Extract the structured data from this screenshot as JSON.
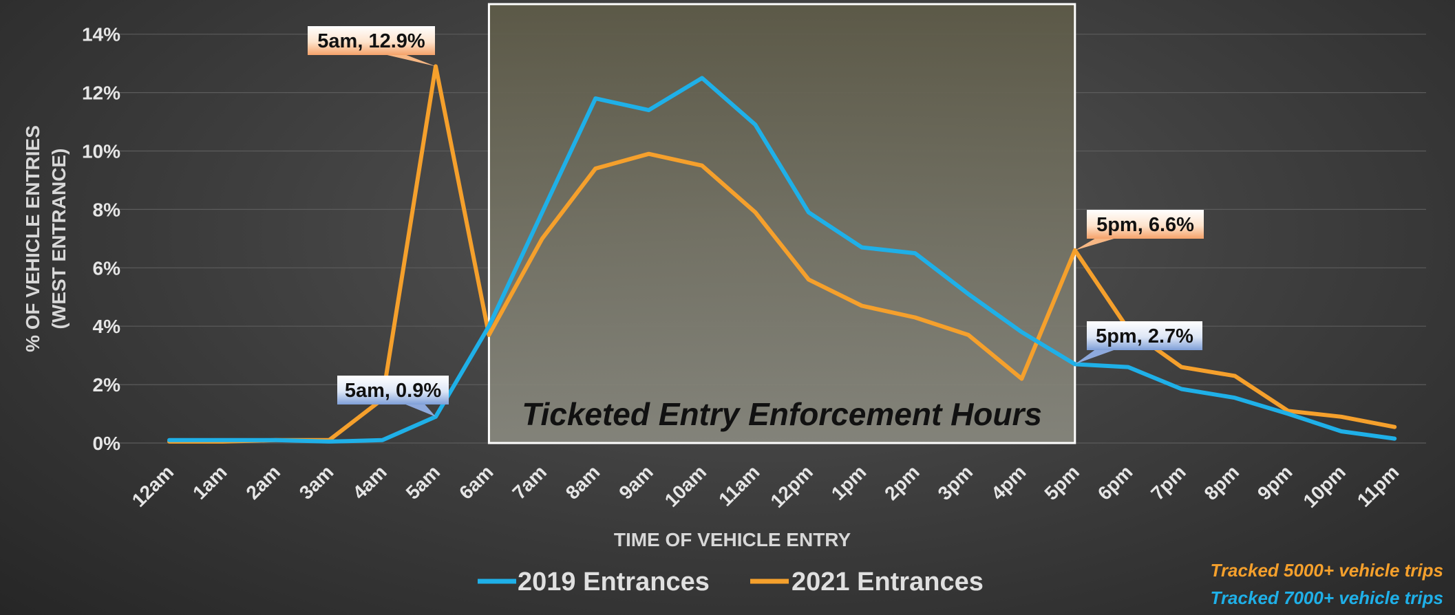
{
  "chart_data": {
    "type": "line",
    "title": "",
    "xlabel": "TIME OF VEHICLE ENTRY",
    "ylabel": "% OF VEHICLE ENTRIES",
    "ylabel2": "(WEST ENTRANCE)",
    "ylim": [
      0,
      14
    ],
    "yticks": [
      "0%",
      "2%",
      "4%",
      "6%",
      "8%",
      "10%",
      "12%",
      "14%"
    ],
    "grid": true,
    "categories": [
      "12am",
      "1am",
      "2am",
      "3am",
      "4am",
      "5am",
      "6am",
      "7am",
      "8am",
      "9am",
      "10am",
      "11am",
      "12pm",
      "1pm",
      "2pm",
      "3pm",
      "4pm",
      "5pm",
      "6pm",
      "7pm",
      "8pm",
      "9pm",
      "10pm",
      "11pm"
    ],
    "series": [
      {
        "name": "2019 Entrances",
        "color": "#1fb0e8",
        "values": [
          0.1,
          0.1,
          0.1,
          0.05,
          0.1,
          0.9,
          4.0,
          7.9,
          11.8,
          11.4,
          12.5,
          10.9,
          7.9,
          6.7,
          6.5,
          5.1,
          3.8,
          2.7,
          2.6,
          1.85,
          1.55,
          1.0,
          0.4,
          0.15
        ]
      },
      {
        "name": "2021 Entrances",
        "color": "#f5a02c",
        "values": [
          0.05,
          0.05,
          0.1,
          0.1,
          1.5,
          12.9,
          3.7,
          7.0,
          9.4,
          9.9,
          9.5,
          7.9,
          5.6,
          4.7,
          4.3,
          3.7,
          2.2,
          6.6,
          3.9,
          2.6,
          2.3,
          1.1,
          0.9,
          0.55
        ]
      }
    ],
    "legend_position": "bottom",
    "annotations": [
      {
        "text": "5am, 12.9%",
        "series": "2021 Entrances",
        "category": "5am",
        "value": 12.9,
        "style": "orange"
      },
      {
        "text": "5am, 0.9%",
        "series": "2019 Entrances",
        "category": "5am",
        "value": 0.9,
        "style": "blue"
      },
      {
        "text": "5pm, 6.6%",
        "series": "2021 Entrances",
        "category": "5pm",
        "value": 6.6,
        "style": "orange"
      },
      {
        "text": "5pm, 2.7%",
        "series": "2019 Entrances",
        "category": "5pm",
        "value": 2.7,
        "style": "blue"
      }
    ],
    "shaded_region": {
      "label": "Ticketed Entry Enforcement Hours",
      "from": "6am",
      "to": "5pm"
    },
    "notes": [
      {
        "text": "Tracked 5000+ vehicle trips",
        "color": "#f5a02c"
      },
      {
        "text": "Tracked 7000+ vehicle trips",
        "color": "#1fb0e8"
      }
    ]
  }
}
